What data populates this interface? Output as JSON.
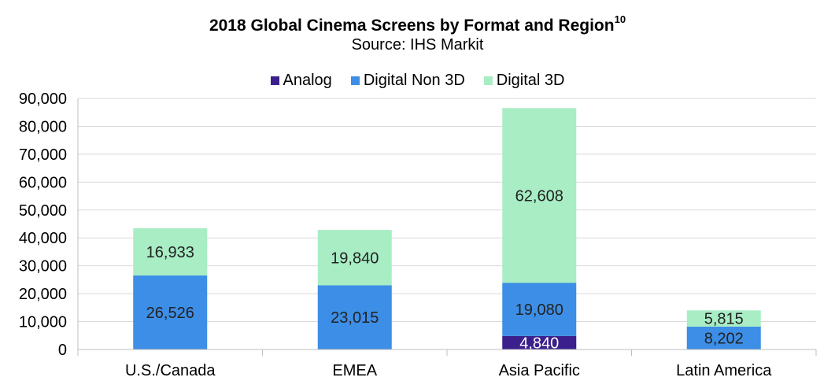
{
  "chart_data": {
    "type": "bar",
    "stacked": true,
    "title": "2018 Global Cinema Screens by Format and Region",
    "title_superscript": "10",
    "subtitle": "Source: IHS Markit",
    "categories": [
      "U.S./Canada",
      "EMEA",
      "Asia Pacific",
      "Latin America"
    ],
    "series": [
      {
        "name": "Analog",
        "color": "#3b1f8c",
        "values": [
          null,
          null,
          4840,
          null
        ],
        "labels": [
          "",
          "",
          "4,840",
          ""
        ]
      },
      {
        "name": "Digital Non 3D",
        "color": "#3d8ee6",
        "values": [
          26526,
          23015,
          19080,
          8202
        ],
        "labels": [
          "26,526",
          "23,015",
          "19,080",
          "8,202"
        ]
      },
      {
        "name": "Digital 3D",
        "color": "#a8edc4",
        "values": [
          16933,
          19840,
          62608,
          5815
        ],
        "labels": [
          "16,933",
          "19,840",
          "62,608",
          "5,815"
        ]
      }
    ],
    "ylim": [
      0,
      90000
    ],
    "yticks": [
      0,
      10000,
      20000,
      30000,
      40000,
      50000,
      60000,
      70000,
      80000,
      90000
    ],
    "ytick_labels": [
      "0",
      "10,000",
      "20,000",
      "30,000",
      "40,000",
      "50,000",
      "60,000",
      "70,000",
      "80,000",
      "90,000"
    ],
    "grid": true,
    "legend_position": "top",
    "xlabel": "",
    "ylabel": ""
  }
}
